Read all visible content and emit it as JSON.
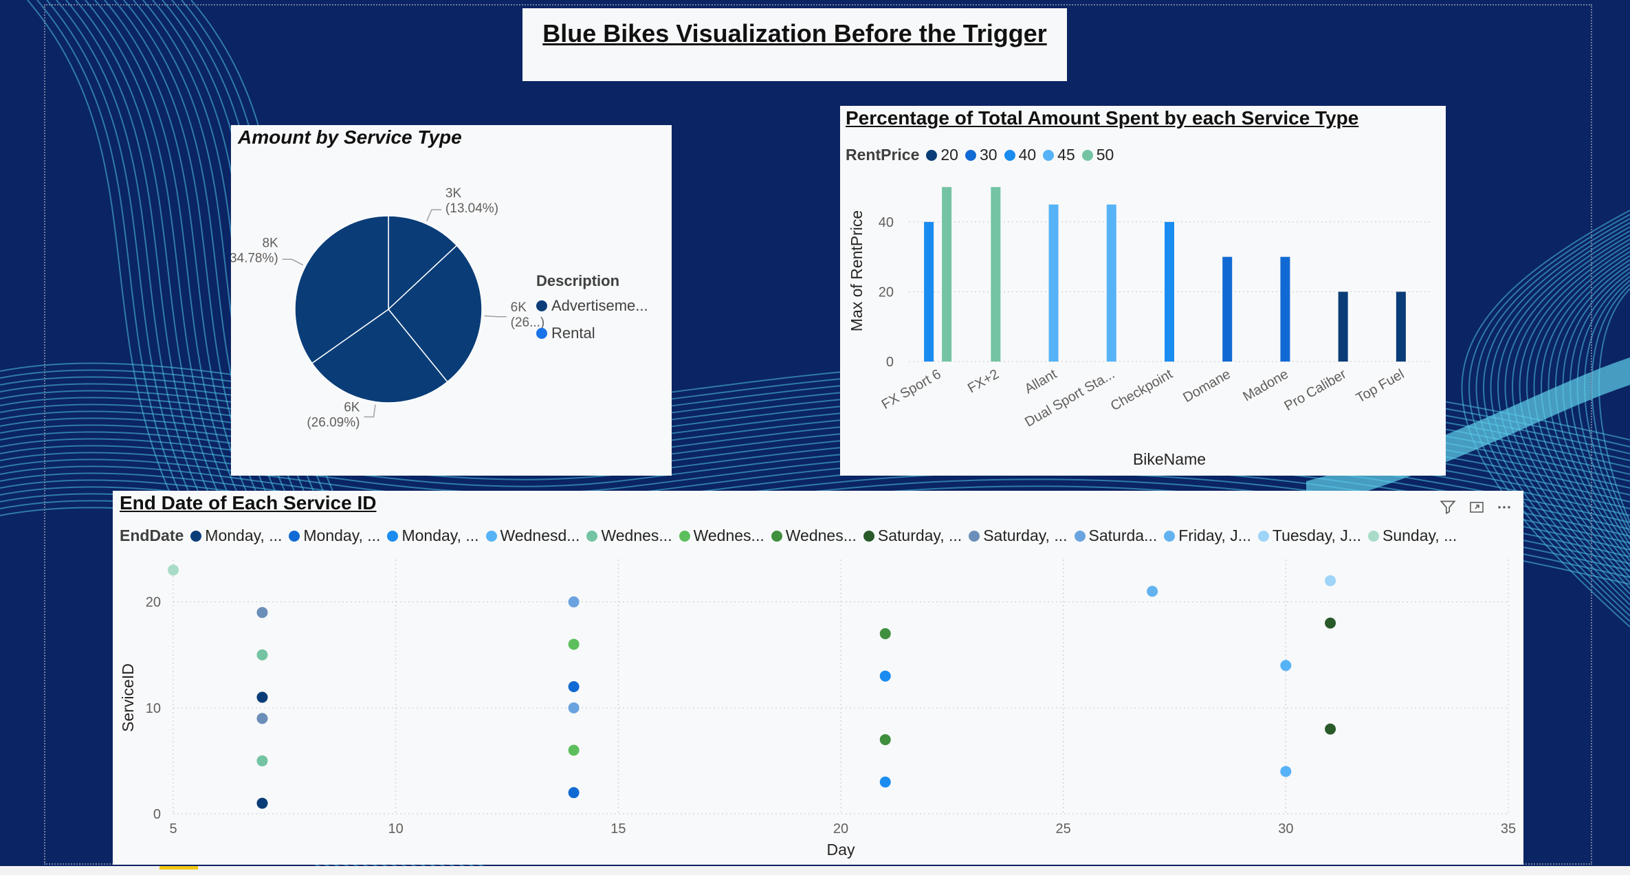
{
  "report_title": "Blue Bikes Visualization Before the Trigger",
  "theme": {
    "background": "#0b2463",
    "card": "#f8f9fa"
  },
  "pie": {
    "title": "Amount by Service Type",
    "legend_title": "Description",
    "legend": [
      {
        "label": "Advertiseme...",
        "color": "#0a3d78"
      },
      {
        "label": "Rental",
        "color": "#1a73e8"
      }
    ],
    "labels": [
      {
        "value": "3K",
        "pct": "(13.04%)"
      },
      {
        "value": "6K",
        "pct": "(26...)"
      },
      {
        "value": "6K",
        "pct": "(26.09%)"
      },
      {
        "value": "8K",
        "pct": "(34.78%)"
      }
    ]
  },
  "bar": {
    "title": "Percentage of Total Amount Spent by each Service Type",
    "legend_title": "RentPrice",
    "legend": [
      {
        "label": "20",
        "color": "#0a3d78"
      },
      {
        "label": "30",
        "color": "#116ad3"
      },
      {
        "label": "40",
        "color": "#1a8cf0"
      },
      {
        "label": "45",
        "color": "#56b3f7"
      },
      {
        "label": "50",
        "color": "#74c4a3"
      }
    ],
    "icons": {
      "filter": "filter-icon",
      "focus": "focus-mode-icon",
      "more": "more-options-icon"
    }
  },
  "scatter": {
    "title": "End Date of Each Service ID",
    "legend_title": "EndDate",
    "legend": [
      {
        "label": "Monday, ...",
        "color": "#0a3d78"
      },
      {
        "label": "Monday, ...",
        "color": "#116ad3"
      },
      {
        "label": "Monday, ...",
        "color": "#1a8cf0"
      },
      {
        "label": "Wednesd...",
        "color": "#56b3f7"
      },
      {
        "label": "Wednes...",
        "color": "#74c4a3"
      },
      {
        "label": "Wednes...",
        "color": "#5cbf5c"
      },
      {
        "label": "Wednes...",
        "color": "#3f8f3f"
      },
      {
        "label": "Saturday, ...",
        "color": "#295a2a"
      },
      {
        "label": "Saturday, ...",
        "color": "#6b8fb9"
      },
      {
        "label": "Saturda...",
        "color": "#6ba3e0"
      },
      {
        "label": "Friday, J...",
        "color": "#63b3f0"
      },
      {
        "label": "Tuesday, J...",
        "color": "#9ed4f8"
      },
      {
        "label": "Sunday, ...",
        "color": "#a8dcc8"
      }
    ],
    "toolbar": {
      "filter": "filter-icon",
      "focus": "focus-mode-icon",
      "more": "more-options-icon"
    }
  },
  "chart_data": [
    {
      "type": "pie",
      "title": "Amount by Service Type",
      "legend_title": "Description",
      "slices": [
        {
          "value": 3000,
          "percent": 13.04,
          "color": "#0a3d78"
        },
        {
          "value": 6000,
          "percent": 26.09,
          "color": "#0a3d78"
        },
        {
          "value": 6000,
          "percent": 26.09,
          "color": "#0a3d78"
        },
        {
          "value": 8000,
          "percent": 34.78,
          "color": "#0a3d78"
        }
      ],
      "legend_placement": "right"
    },
    {
      "type": "bar",
      "title": "Percentage of Total Amount Spent by each Service Type",
      "xlabel": "BikeName",
      "ylabel": "Max of RentPrice",
      "ylim": [
        0,
        52
      ],
      "yticks": [
        0,
        20,
        40
      ],
      "grid": true,
      "legend_title": "RentPrice",
      "legend_placement": "top-left",
      "categories": [
        "FX Sport 6",
        "FX+2",
        "Allant",
        "Dual Sport Sta...",
        "Checkpoint",
        "Domane",
        "Madone",
        "Pro Caliber",
        "Top Fuel"
      ],
      "series": [
        {
          "name": "20",
          "color": "#0a3d78",
          "values": [
            null,
            null,
            null,
            null,
            null,
            null,
            null,
            20,
            20
          ]
        },
        {
          "name": "30",
          "color": "#116ad3",
          "values": [
            null,
            null,
            null,
            null,
            null,
            30,
            30,
            null,
            null
          ]
        },
        {
          "name": "40",
          "color": "#1a8cf0",
          "values": [
            40,
            null,
            null,
            null,
            40,
            null,
            null,
            null,
            null
          ]
        },
        {
          "name": "45",
          "color": "#56b3f7",
          "values": [
            null,
            null,
            45,
            45,
            null,
            null,
            null,
            null,
            null
          ]
        },
        {
          "name": "50",
          "color": "#74c4a3",
          "values": [
            50,
            50,
            null,
            null,
            null,
            null,
            null,
            null,
            null
          ]
        }
      ]
    },
    {
      "type": "scatter",
      "title": "End Date of Each Service ID",
      "xlabel": "Day",
      "ylabel": "ServiceID",
      "xlim": [
        5,
        35
      ],
      "xticks": [
        5,
        10,
        15,
        20,
        25,
        30,
        35
      ],
      "ylim": [
        0,
        24
      ],
      "yticks": [
        0,
        10,
        20
      ],
      "grid": true,
      "legend_title": "EndDate",
      "legend_placement": "top-left",
      "points": [
        {
          "x": 5,
          "y": 23,
          "color": "#a8dcc8"
        },
        {
          "x": 7,
          "y": 19,
          "color": "#6b8fb9"
        },
        {
          "x": 7,
          "y": 15,
          "color": "#74c4a3"
        },
        {
          "x": 7,
          "y": 11,
          "color": "#0a3d78"
        },
        {
          "x": 7,
          "y": 9,
          "color": "#6b8fb9"
        },
        {
          "x": 7,
          "y": 5,
          "color": "#74c4a3"
        },
        {
          "x": 7,
          "y": 1,
          "color": "#0a3d78"
        },
        {
          "x": 14,
          "y": 20,
          "color": "#6ba3e0"
        },
        {
          "x": 14,
          "y": 16,
          "color": "#5cbf5c"
        },
        {
          "x": 14,
          "y": 12,
          "color": "#116ad3"
        },
        {
          "x": 14,
          "y": 10,
          "color": "#6ba3e0"
        },
        {
          "x": 14,
          "y": 6,
          "color": "#5cbf5c"
        },
        {
          "x": 14,
          "y": 2,
          "color": "#116ad3"
        },
        {
          "x": 21,
          "y": 17,
          "color": "#3f8f3f"
        },
        {
          "x": 21,
          "y": 13,
          "color": "#1a8cf0"
        },
        {
          "x": 21,
          "y": 7,
          "color": "#3f8f3f"
        },
        {
          "x": 21,
          "y": 3,
          "color": "#1a8cf0"
        },
        {
          "x": 27,
          "y": 21,
          "color": "#63b3f0"
        },
        {
          "x": 30,
          "y": 14,
          "color": "#56b3f7"
        },
        {
          "x": 30,
          "y": 4,
          "color": "#56b3f7"
        },
        {
          "x": 31,
          "y": 22,
          "color": "#9ed4f8"
        },
        {
          "x": 31,
          "y": 18,
          "color": "#295a2a"
        },
        {
          "x": 31,
          "y": 8,
          "color": "#295a2a"
        }
      ]
    }
  ]
}
